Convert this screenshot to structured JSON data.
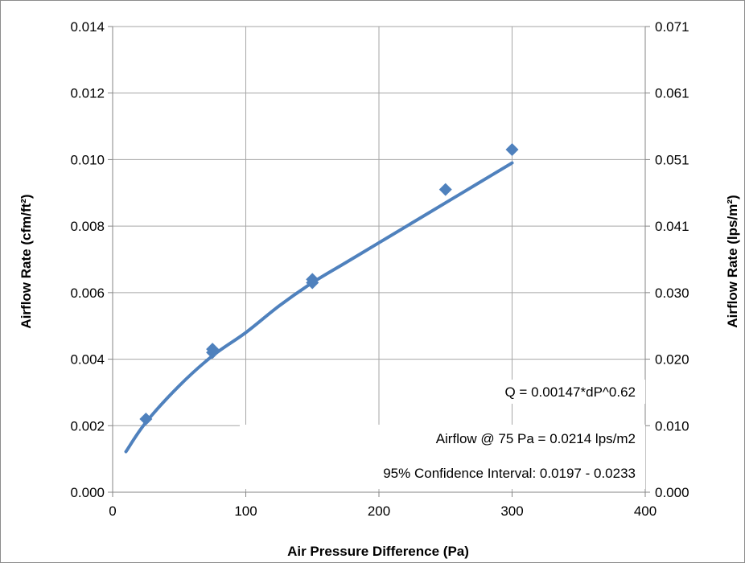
{
  "chart_data": {
    "type": "scatter",
    "title": "",
    "xlabel": "Air Pressure Difference (Pa)",
    "ylabel": "Airflow Rate (cfm/ft²)",
    "y2label": "Airflow Rate (lps/m²)",
    "xlim": [
      0,
      400
    ],
    "ylim": [
      0,
      0.014
    ],
    "y2lim": [
      0,
      0.071
    ],
    "x_ticks": [
      "0",
      "100",
      "200",
      "300",
      "400"
    ],
    "y_ticks": [
      "0.000",
      "0.002",
      "0.004",
      "0.006",
      "0.008",
      "0.010",
      "0.012",
      "0.014"
    ],
    "y2_ticks": [
      "0.000",
      "0.010",
      "0.020",
      "0.030",
      "0.041",
      "0.051",
      "0.061",
      "0.071"
    ],
    "grid": true,
    "series": [
      {
        "type": "scatter",
        "marker": "diamond",
        "color": "#4f81bd",
        "x": [
          25,
          75,
          75,
          150,
          150,
          250,
          300
        ],
        "y": [
          0.0022,
          0.0043,
          0.0042,
          0.0064,
          0.0063,
          0.0091,
          0.0103
        ]
      },
      {
        "type": "line",
        "color": "#4f81bd",
        "x": [
          10,
          25,
          50,
          75,
          100,
          125,
          150,
          175,
          200,
          225,
          250,
          275,
          300
        ],
        "y": [
          0.00122,
          0.0021,
          0.0032,
          0.0041,
          0.0048,
          0.0056,
          0.0063,
          0.0069,
          0.0075,
          0.0081,
          0.0087,
          0.0093,
          0.0099
        ]
      }
    ],
    "annotations": [
      "Q = 0.00147*dP^0.62",
      "Airflow @ 75 Pa = 0.0214 lps/m2",
      "95% Confidence Interval: 0.0197 - 0.0233"
    ]
  }
}
